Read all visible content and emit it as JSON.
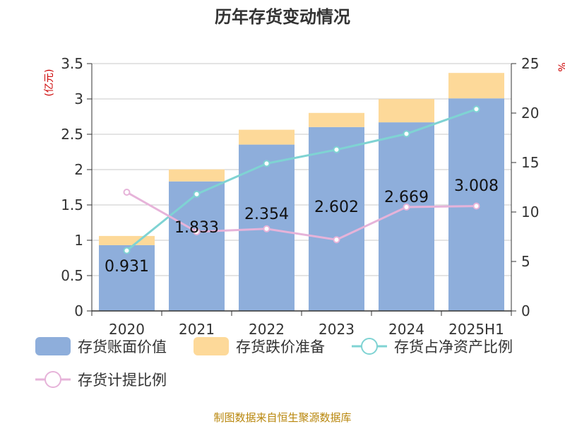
{
  "chart_data": {
    "type": "bar",
    "title": "历年存货变动情况",
    "y_left_unit": "(亿元)",
    "y_right_unit": "%",
    "categories": [
      "2020",
      "2021",
      "2022",
      "2023",
      "2024",
      "2025H1"
    ],
    "ylim_left": [
      0,
      3.5
    ],
    "ylim_right": [
      0,
      25
    ],
    "y_left_ticks": [
      "0",
      "0.5",
      "1",
      "1.5",
      "2",
      "2.5",
      "3",
      "3.5"
    ],
    "y_right_ticks": [
      "0",
      "5",
      "10",
      "15",
      "20",
      "25"
    ],
    "grid": true,
    "legend_position": "bottom",
    "series": [
      {
        "name": "存货账面价值",
        "type": "bar",
        "axis": "left",
        "color": "#8eaedb",
        "values": [
          0.931,
          1.833,
          2.354,
          2.602,
          2.669,
          3.008
        ],
        "labels": [
          "0.931",
          "1.833",
          "2.354",
          "2.602",
          "2.669",
          "3.008"
        ]
      },
      {
        "name": "存货跌价准备",
        "type": "bar",
        "axis": "left",
        "stacked": true,
        "color": "#fdd999",
        "values": [
          0.13,
          0.17,
          0.21,
          0.2,
          0.33,
          0.36
        ]
      },
      {
        "name": "存货占净资产比例",
        "type": "line",
        "axis": "right",
        "color": "#7fd3d3",
        "values": [
          6.1,
          11.8,
          14.9,
          16.3,
          17.9,
          20.4
        ]
      },
      {
        "name": "存货计提比例",
        "type": "line",
        "axis": "right",
        "color": "#e6b3d9",
        "values": [
          12.0,
          8.0,
          8.3,
          7.2,
          10.5,
          10.6
        ]
      }
    ]
  },
  "source": "制图数据来自恒生聚源数据库"
}
